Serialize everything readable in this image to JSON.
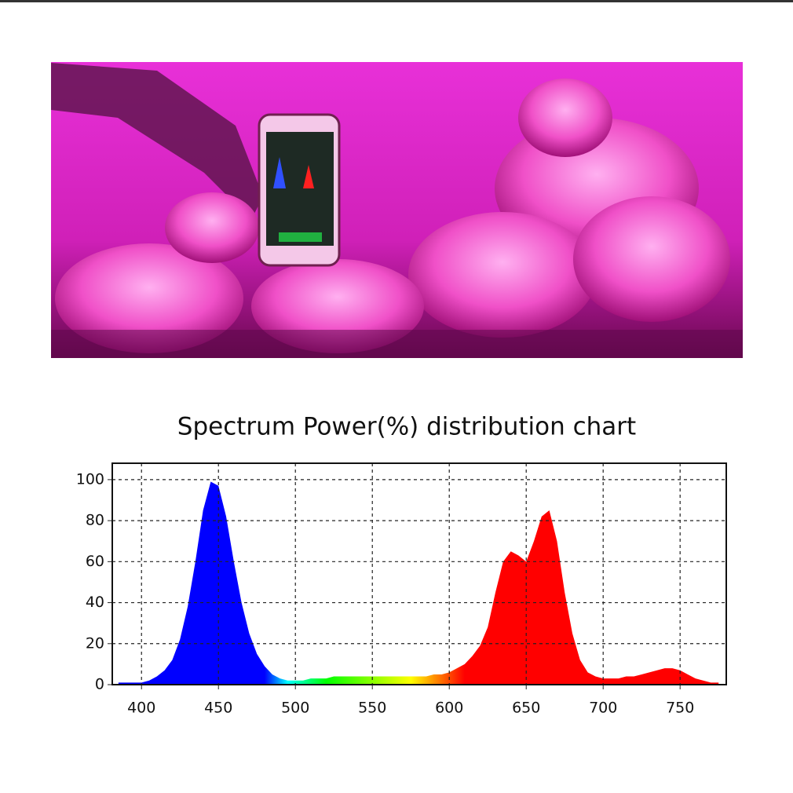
{
  "chart_data": {
    "type": "area",
    "title": "Spectrum Power(%) distribution chart",
    "x": [
      385,
      390,
      395,
      400,
      405,
      410,
      415,
      420,
      425,
      430,
      435,
      440,
      445,
      450,
      455,
      460,
      465,
      470,
      475,
      480,
      485,
      490,
      495,
      500,
      505,
      510,
      515,
      520,
      525,
      530,
      535,
      540,
      545,
      550,
      555,
      560,
      565,
      570,
      575,
      580,
      585,
      590,
      595,
      600,
      605,
      610,
      615,
      620,
      625,
      630,
      635,
      640,
      645,
      650,
      655,
      660,
      665,
      670,
      675,
      680,
      685,
      690,
      695,
      700,
      705,
      710,
      715,
      720,
      725,
      730,
      735,
      740,
      745,
      750,
      755,
      760,
      765,
      770,
      775
    ],
    "values": [
      1,
      1,
      1,
      1,
      2,
      4,
      7,
      12,
      22,
      38,
      60,
      85,
      99,
      97,
      82,
      60,
      40,
      25,
      15,
      9,
      5,
      3,
      2,
      2,
      2,
      3,
      3,
      3,
      4,
      4,
      4,
      4,
      4,
      4,
      4,
      4,
      4,
      4,
      4,
      4,
      4,
      5,
      5,
      6,
      8,
      10,
      14,
      19,
      28,
      45,
      60,
      65,
      63,
      60,
      70,
      82,
      85,
      70,
      45,
      25,
      12,
      6,
      4,
      3,
      3,
      3,
      4,
      4,
      5,
      6,
      7,
      8,
      8,
      7,
      5,
      3,
      2,
      1,
      1
    ],
    "xlim": [
      381,
      780
    ],
    "ylim": [
      0,
      108
    ],
    "xticks": [
      400,
      450,
      500,
      550,
      600,
      650,
      700,
      750
    ],
    "yticks": [
      0,
      20,
      40,
      60,
      80,
      100
    ],
    "grid": true
  }
}
